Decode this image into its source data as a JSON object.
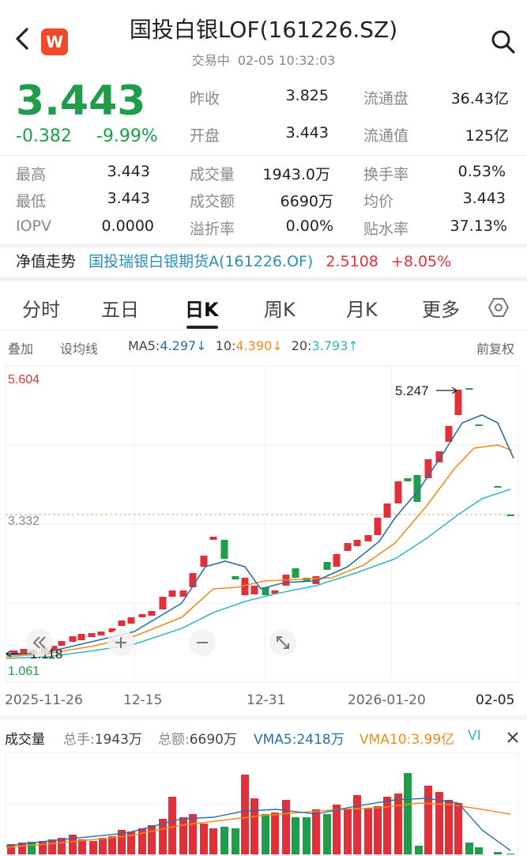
{
  "header": {
    "title": "国投白银LOF(161226.SZ)",
    "status": "交易中",
    "datetime": "02-05 10:32:03",
    "logo_text": "W",
    "back_icon": "chevron-left-icon",
    "search_icon": "search-icon"
  },
  "quote": {
    "price": "3.443",
    "change": "-0.382",
    "change_pct": "-9.99%",
    "prev_close_label": "昨收",
    "prev_close": "3.825",
    "open_label": "开盘",
    "open": "3.443",
    "float_shares_label": "流通盘",
    "float_shares": "36.43亿",
    "float_value_label": "流通值",
    "float_value": "125亿",
    "high_label": "最高",
    "high": "3.443",
    "low_label": "最低",
    "low": "3.443",
    "iopv_label": "IOPV",
    "iopv": "0.0000",
    "volume_label": "成交量",
    "volume": "1943.0万",
    "amount_label": "成交额",
    "amount": "6690万",
    "premium_label": "溢折率",
    "premium": "0.00%",
    "turnover_label": "换手率",
    "turnover": "0.53%",
    "avg_label": "均价",
    "avg": "3.443",
    "discount_label": "贴水率",
    "discount": "37.13%"
  },
  "nav": {
    "label": "净值走势",
    "fund_name": "国投瑞银白银期货A(161226.OF)",
    "nav_value": "2.5108",
    "nav_change": "+8.05%"
  },
  "tabs": [
    {
      "label": "分时",
      "active": false
    },
    {
      "label": "五日",
      "active": false
    },
    {
      "label": "日K",
      "active": true
    },
    {
      "label": "周K",
      "active": false
    },
    {
      "label": "月K",
      "active": false
    },
    {
      "label": "更多",
      "active": false
    }
  ],
  "settings_icon": "hexagon-settings-icon",
  "toolbar": {
    "overlay": "叠加",
    "set_ma": "设均线",
    "ma5_label": "MA5:",
    "ma5_value": "4.297↓",
    "ma10_label": "10:",
    "ma10_value": "4.390↓",
    "ma20_label": "20:",
    "ma20_value": "3.793↑",
    "adjust": "前复权"
  },
  "kline": {
    "max_label": "5.604",
    "min_label": "1.061",
    "ref_label": "3.332",
    "peak_label": "5.247",
    "low_marker_label": "1.118",
    "dates": [
      "2025-11-26",
      "12-15",
      "12-31",
      "2026-01-20",
      "02-05"
    ]
  },
  "controls": {
    "rewind_icon": "double-chevron-left-icon",
    "zoom_in_icon": "plus-icon",
    "zoom_out_icon": "minus-icon",
    "fullscreen_icon": "expand-icon"
  },
  "volume": {
    "title": "成交量",
    "total_hands_label": "总手:",
    "total_hands": "1943万",
    "total_amount_label": "总额:",
    "total_amount": "6690万",
    "vma5_label": "VMA5:",
    "vma5": "2418万",
    "vma10_label": "VMA10:",
    "vma10": "3.99亿",
    "vi_label": "VI",
    "close_icon": "close-icon"
  },
  "colors": {
    "up": "#e0303a",
    "down": "#1f9d4a",
    "ma5": "#2a6fa8",
    "ma10": "#f08c1a",
    "ma20": "#36b8c2"
  }
}
